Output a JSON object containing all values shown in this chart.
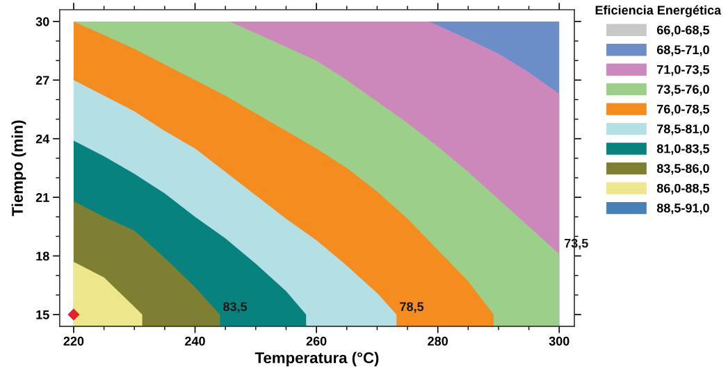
{
  "chart_data": {
    "type": "area",
    "xlabel": "Temperatura (°C)",
    "ylabel": "Tiempo (min)",
    "legend_title": "Eficiencia Energética",
    "legend": "right",
    "xlim": [
      217.7,
      302.5
    ],
    "ylim": [
      14.4,
      30.6
    ],
    "xticks": [
      220,
      {
        "value": 225,
        "label": null
      },
      {
        "value": 230,
        "label": null
      },
      {
        "value": 235,
        "label": null
      },
      240,
      {
        "value": 245,
        "label": null
      },
      {
        "value": 250,
        "label": null
      },
      {
        "value": 255,
        "label": null
      },
      260,
      {
        "value": 265,
        "label": null
      },
      {
        "value": 270,
        "label": null
      },
      {
        "value": 275,
        "label": null
      },
      280,
      {
        "value": 285,
        "label": null
      },
      {
        "value": 290,
        "label": null
      },
      {
        "value": 295,
        "label": null
      },
      300
    ],
    "yticks": [
      15,
      {
        "value": 16,
        "label": null
      },
      {
        "value": 17,
        "label": null
      },
      18,
      {
        "value": 19,
        "label": null
      },
      {
        "value": 20,
        "label": null
      },
      21,
      {
        "value": 22,
        "label": null
      },
      {
        "value": 23,
        "label": null
      },
      24,
      {
        "value": 25,
        "label": null
      },
      {
        "value": 26,
        "label": null
      },
      27,
      {
        "value": 28,
        "label": null
      },
      {
        "value": 29,
        "label": null
      },
      30
    ],
    "series": [
      {
        "name": "66,0-68,5",
        "color": "#c8c8c8"
      },
      {
        "name": "68,5-71,0",
        "color": "#6b8ec8",
        "x": [
          278.5,
          285,
          290,
          295,
          300
        ],
        "values": [
          30,
          30,
          30,
          30,
          30
        ]
      },
      {
        "name": "71,0-73,5",
        "color": "#cc88bb",
        "x": [
          245.7,
          250,
          255,
          260,
          265,
          270,
          275,
          278.5,
          280,
          285,
          290,
          295,
          300
        ],
        "values": [
          30,
          30,
          30,
          30,
          30,
          30,
          30,
          30,
          29.8,
          29.1,
          28.35,
          27.4,
          26.3
        ]
      },
      {
        "name": "73,5-76,0",
        "color": "#9ccf8a",
        "x": [
          220,
          225,
          230,
          235,
          240,
          245,
          245.7,
          250,
          255,
          260,
          265,
          270,
          275,
          280,
          285,
          290,
          295,
          300
        ],
        "values": [
          30,
          30,
          30,
          30,
          30,
          30,
          30,
          29.4,
          28.7,
          28.0,
          27.0,
          25.9,
          24.8,
          23.6,
          22.3,
          20.9,
          19.5,
          18.1
        ]
      },
      {
        "name": "76,0-78,5",
        "color": "#f58c20",
        "x": [
          220,
          225,
          230,
          235,
          240,
          245,
          250,
          255,
          260,
          265,
          270,
          275,
          280,
          285,
          289.2
        ],
        "values": [
          30,
          29.3,
          28.6,
          27.8,
          27.0,
          26.2,
          25.3,
          24.4,
          23.5,
          22.5,
          21.3,
          19.9,
          18.3,
          16.7,
          15
        ]
      },
      {
        "name": "78,5-81,0",
        "color": "#b3e0e5",
        "x": [
          220,
          225,
          230,
          235,
          240,
          245,
          250,
          255,
          260,
          265,
          270,
          273.2
        ],
        "values": [
          27.0,
          26.2,
          25.4,
          24.4,
          23.5,
          22.3,
          21.1,
          19.9,
          18.8,
          17.5,
          16.1,
          15
        ]
      },
      {
        "name": "81,0-83,5",
        "color": "#08827e",
        "x": [
          220,
          225,
          230,
          235,
          240,
          245,
          250,
          255,
          258.3
        ],
        "values": [
          23.9,
          23.1,
          22.2,
          21.2,
          20.0,
          18.9,
          17.6,
          16.2,
          15
        ]
      },
      {
        "name": "83,5-86,0",
        "color": "#7f7f33",
        "x": [
          220,
          225,
          230,
          235,
          240,
          244.1
        ],
        "values": [
          20.8,
          20.0,
          19.3,
          17.9,
          16.4,
          15
        ]
      },
      {
        "name": "86,0-88,5",
        "color": "#ede68a",
        "x": [
          220,
          225,
          230,
          231.3
        ],
        "values": [
          17.7,
          16.9,
          15.4,
          15
        ]
      },
      {
        "name": "88,5-91,0",
        "color": "#4682b8"
      },
      {
        "type": "scatter",
        "color": "#e8202a",
        "marker": "diamond",
        "x": [
          220
        ],
        "values": [
          15
        ]
      }
    ],
    "annotations": [
      {
        "text": "83,5",
        "x": 244.1,
        "y": 15
      },
      {
        "text": "78,5",
        "x": 273.2,
        "y": 15
      },
      {
        "text": "73,5",
        "x": 300,
        "y": 18.1
      }
    ]
  }
}
